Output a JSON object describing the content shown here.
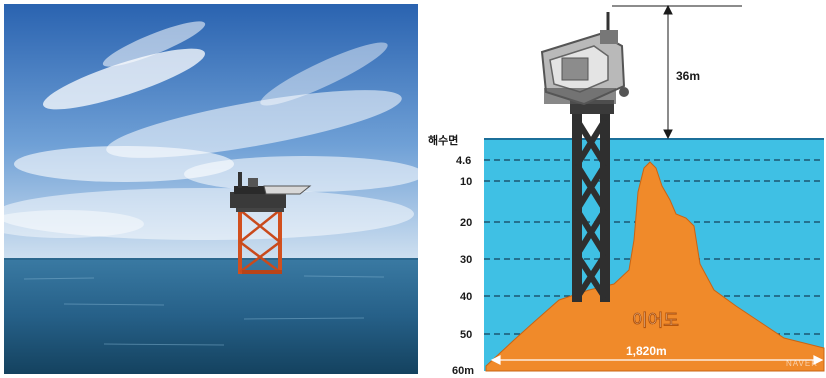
{
  "diagram": {
    "height_label": "36m",
    "sea_level_label": "해수면",
    "depth_labels": [
      "4.6",
      "10",
      "20",
      "30",
      "40",
      "50",
      "60m"
    ],
    "reef_label": "이어도",
    "width_label": "1,820m",
    "watermark": "NAVER"
  },
  "colors": {
    "sea": "#3fc0e4",
    "reef": "#f08a2a",
    "structure": "#2f2f2f",
    "sky_top": "#2d69b6",
    "ocean": "#27648c"
  }
}
